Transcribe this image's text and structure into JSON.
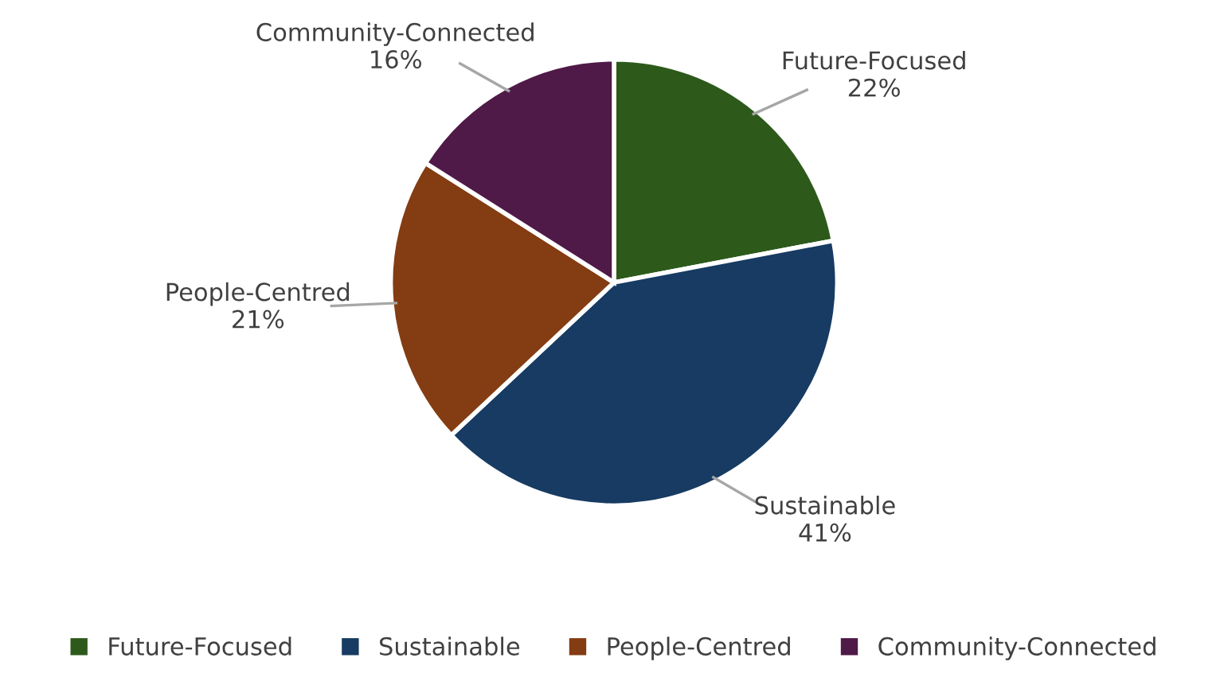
{
  "chart_data": {
    "type": "pie",
    "categories": [
      "Future-Focused",
      "Sustainable",
      "People-Centred",
      "Community-Connected"
    ],
    "values": [
      22,
      41,
      21,
      16
    ],
    "colors": [
      "#2d5a1b",
      "#173b62",
      "#843c12",
      "#4f1a47"
    ],
    "value_labels": [
      "22%",
      "41%",
      "21%",
      "16%"
    ],
    "legend": "bottom"
  }
}
